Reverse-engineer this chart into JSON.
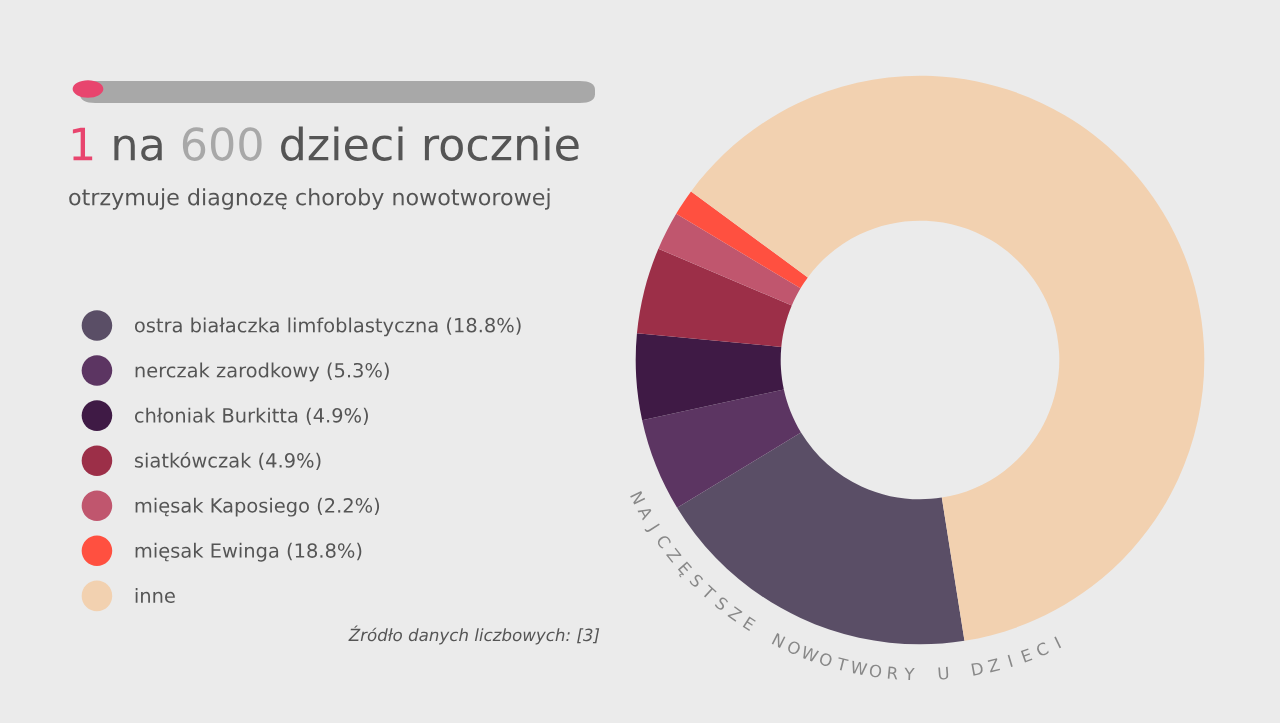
{
  "chart_data": {
    "type": "donut",
    "title": "1 na 600 dzieci rocznie",
    "subtitle": "otrzymuje diagnozę choroby nowotworowej",
    "categories": [
      "ostra białaczka limfoblastyczna (18.8%)",
      "nerczak zarodkowy (5.3%)",
      "chłoniak Burkitta (4.9%)",
      "siatkówczak (4.9%)",
      "mięsak Kaposiego (2.2%)",
      "mięsak Ewinga (18.8%)",
      "inne"
    ],
    "values": [
      18.8,
      5.3,
      4.9,
      4.9,
      2.2,
      1.5,
      62.4
    ],
    "colors": [
      "#5a4e66",
      "#5c3562",
      "#3f1a45",
      "#9c2f48",
      "#c0566e",
      "#ff5040",
      "#f2d1b0"
    ],
    "legend": "left",
    "annotations": [
      "NAJCZĘSTSZE NOWOTWORY U DZIECI",
      "Źródło danych liczbowych: [3]"
    ]
  }
}
